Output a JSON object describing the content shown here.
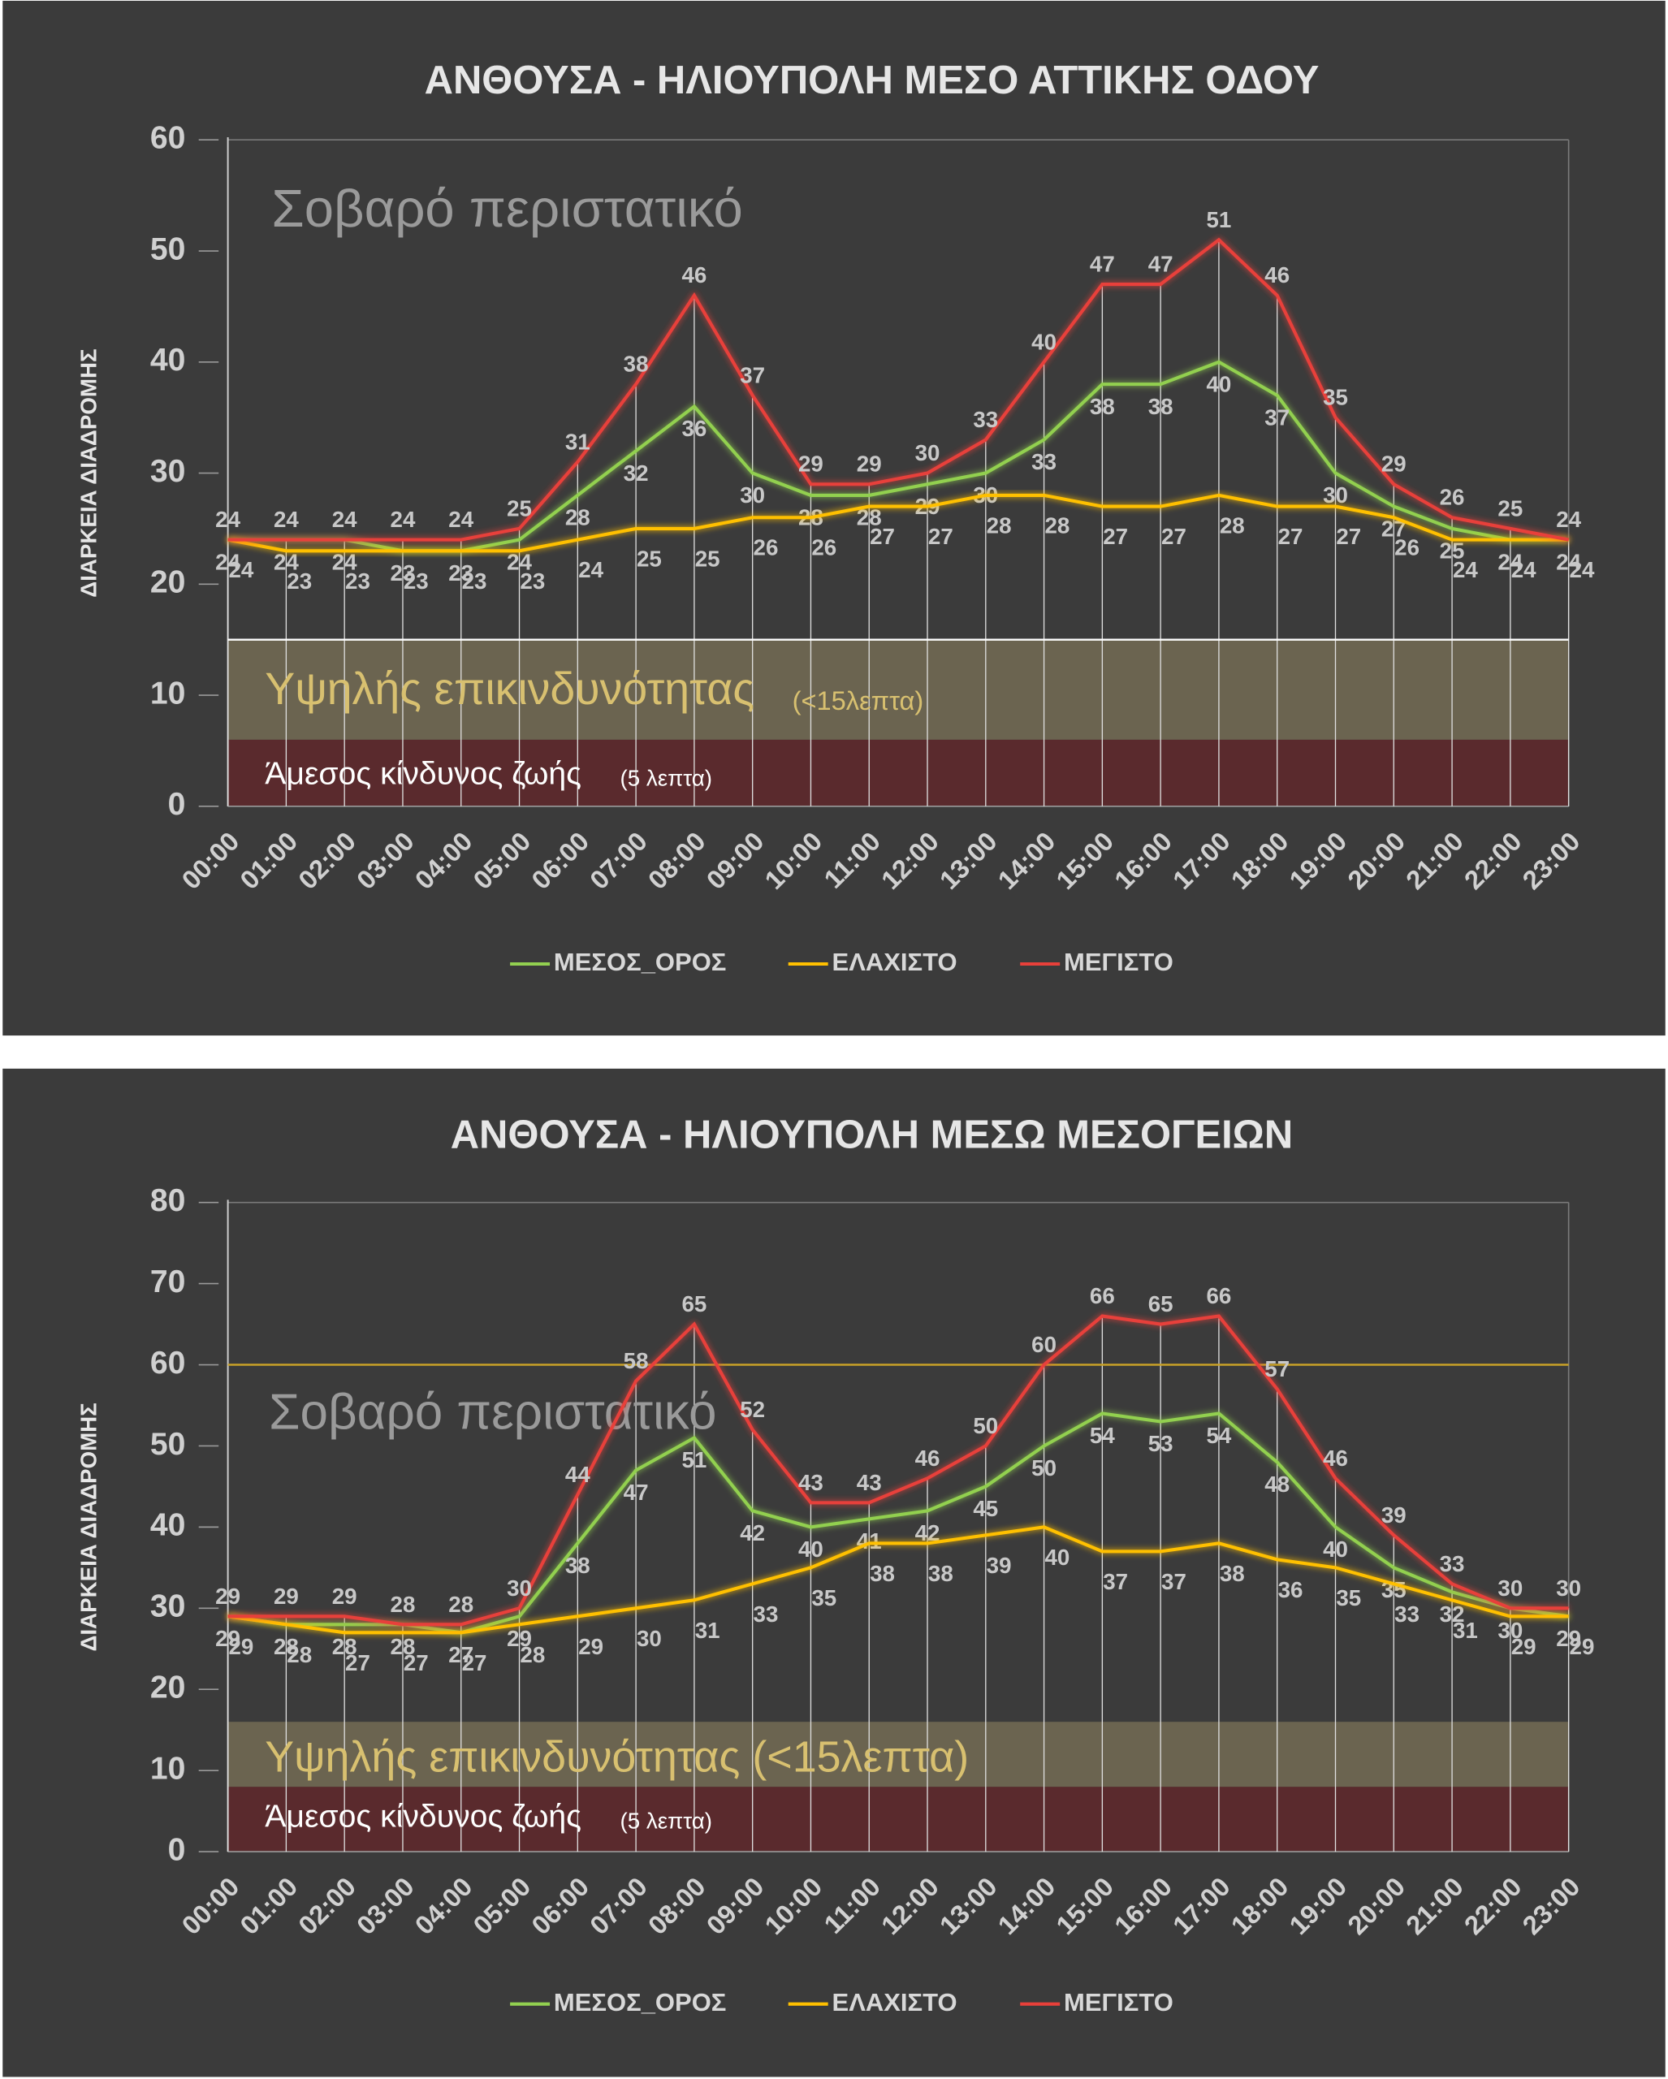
{
  "chart_data": [
    {
      "type": "line",
      "title": "ΑΝΘΟΥΣΑ - ΗΛΙΟΥΠΟΛΗ ΜΕΣΟ ΑΤΤΙΚΗΣ ΟΔΟΥ",
      "y_label": "ΔΙΑΡΚΕΙΑ ΔΙΑΔΡΟΜΗΣ",
      "categories": [
        "00:00",
        "01:00",
        "02:00",
        "03:00",
        "04:00",
        "05:00",
        "06:00",
        "07:00",
        "08:00",
        "09:00",
        "10:00",
        "11:00",
        "12:00",
        "13:00",
        "14:00",
        "15:00",
        "16:00",
        "17:00",
        "18:00",
        "19:00",
        "20:00",
        "21:00",
        "22:00",
        "23:00"
      ],
      "series": [
        {
          "name": "ΜΕΣΟΣ_ΟΡΟΣ",
          "color": "#92d050",
          "values": [
            24,
            24,
            24,
            23,
            23,
            24,
            28,
            32,
            36,
            30,
            28,
            28,
            29,
            30,
            33,
            38,
            38,
            40,
            37,
            30,
            27,
            25,
            24,
            24
          ]
        },
        {
          "name": "ΕΛΑΧΙΣΤΟ",
          "color": "#ffc000",
          "values": [
            24,
            23,
            23,
            23,
            23,
            23,
            24,
            25,
            25,
            26,
            26,
            27,
            27,
            28,
            28,
            27,
            27,
            28,
            27,
            27,
            26,
            24,
            24,
            24
          ]
        },
        {
          "name": "ΜΕΓΙΣΤΟ",
          "color": "#e8403a",
          "values": [
            24,
            24,
            24,
            24,
            24,
            25,
            31,
            38,
            46,
            37,
            29,
            29,
            30,
            33,
            40,
            47,
            47,
            51,
            46,
            35,
            29,
            26,
            25,
            24
          ]
        }
      ],
      "ylim": [
        0,
        60
      ],
      "yticks": [
        0,
        10,
        20,
        30,
        40,
        50,
        60
      ],
      "grid": true,
      "bands": [
        {
          "from": 0,
          "to": 6,
          "color": "#5a2a2d"
        },
        {
          "from": 6,
          "to": 15,
          "color": "#6b6450"
        }
      ],
      "threshold": {
        "value": 15,
        "color": "#ffffff"
      },
      "annotations": [
        "Σοβαρό περιστατικό",
        "Υψηλής επικινδυνότητας",
        "(<15λεπτα)",
        "Άμεσος κίνδυνος ζωής",
        "(5 λεπτα)"
      ]
    },
    {
      "type": "line",
      "title": "ΑΝΘΟΥΣΑ - ΗΛΙΟΥΠΟΛΗ ΜΕΣΩ ΜΕΣΟΓΕΙΩΝ",
      "y_label": "ΔΙΑΡΚΕΙΑ ΔΙΑΔΡΟΜΗΣ",
      "categories": [
        "00:00",
        "01:00",
        "02:00",
        "03:00",
        "04:00",
        "05:00",
        "06:00",
        "07:00",
        "08:00",
        "09:00",
        "10:00",
        "11:00",
        "12:00",
        "13:00",
        "14:00",
        "15:00",
        "16:00",
        "17:00",
        "18:00",
        "19:00",
        "20:00",
        "21:00",
        "22:00",
        "23:00"
      ],
      "series": [
        {
          "name": "ΜΕΣΟΣ_ΟΡΟΣ",
          "color": "#92d050",
          "values": [
            29,
            28,
            28,
            28,
            27,
            29,
            38,
            47,
            51,
            42,
            40,
            41,
            42,
            45,
            50,
            54,
            53,
            54,
            48,
            40,
            35,
            32,
            30,
            29
          ]
        },
        {
          "name": "ΕΛΑΧΙΣΤΟ",
          "color": "#ffc000",
          "values": [
            29,
            28,
            27,
            27,
            27,
            28,
            29,
            30,
            31,
            33,
            35,
            38,
            38,
            39,
            40,
            37,
            37,
            38,
            36,
            35,
            33,
            31,
            29,
            29
          ]
        },
        {
          "name": "ΜΕΓΙΣΤΟ",
          "color": "#e8403a",
          "values": [
            29,
            29,
            29,
            28,
            28,
            30,
            44,
            58,
            65,
            52,
            43,
            43,
            46,
            50,
            60,
            66,
            65,
            66,
            57,
            46,
            39,
            33,
            30,
            30
          ]
        }
      ],
      "ylim": [
        0,
        80
      ],
      "yticks": [
        0,
        10,
        20,
        30,
        40,
        50,
        60,
        70,
        80
      ],
      "grid": true,
      "bands": [
        {
          "from": 0,
          "to": 8,
          "color": "#5a2a2d"
        },
        {
          "from": 8,
          "to": 16,
          "color": "#6b6450"
        }
      ],
      "threshold": {
        "value": 60,
        "color": "#c9a227"
      },
      "annotations": [
        "Σοβαρό περιστατικό",
        "Υψηλής επικινδυνότητας (<15λεπτα)",
        "Άμεσος κίνδυνος ζωής",
        "(5 λεπτα)"
      ]
    }
  ]
}
